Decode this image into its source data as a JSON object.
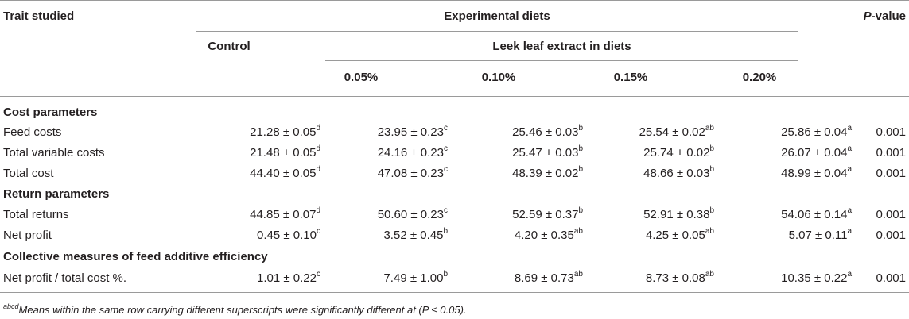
{
  "header": {
    "trait": "Trait studied",
    "experimental": "Experimental diets",
    "pvalue_p": "P",
    "pvalue_rest": "-value",
    "control": "Control",
    "leek": "Leek leaf extract in diets",
    "doses": [
      "0.05%",
      "0.10%",
      "0.15%",
      "0.20%"
    ]
  },
  "sections": [
    {
      "title": "Cost parameters",
      "rows": [
        {
          "label": "Feed costs",
          "cells": [
            {
              "v": "21.28 ± 0.05",
              "s": "d"
            },
            {
              "v": "23.95 ± 0.23",
              "s": "c"
            },
            {
              "v": "25.46 ± 0.03",
              "s": "b"
            },
            {
              "v": "25.54 ± 0.02",
              "s": "ab"
            },
            {
              "v": "25.86 ± 0.04",
              "s": "a"
            }
          ],
          "p": "0.001"
        },
        {
          "label": "Total variable costs",
          "cells": [
            {
              "v": "21.48 ± 0.05",
              "s": "d"
            },
            {
              "v": "24.16 ± 0.23",
              "s": "c"
            },
            {
              "v": "25.47 ± 0.03",
              "s": "b"
            },
            {
              "v": "25.74 ± 0.02",
              "s": "b"
            },
            {
              "v": "26.07 ± 0.04",
              "s": "a"
            }
          ],
          "p": "0.001"
        },
        {
          "label": "Total cost",
          "cells": [
            {
              "v": "44.40 ± 0.05",
              "s": "d"
            },
            {
              "v": "47.08 ± 0.23",
              "s": "c"
            },
            {
              "v": "48.39 ± 0.02",
              "s": "b"
            },
            {
              "v": "48.66 ± 0.03",
              "s": "b"
            },
            {
              "v": "48.99 ± 0.04",
              "s": "a"
            }
          ],
          "p": "0.001"
        }
      ]
    },
    {
      "title": "Return parameters",
      "rows": [
        {
          "label": "Total returns",
          "cells": [
            {
              "v": "44.85 ± 0.07",
              "s": "d"
            },
            {
              "v": "50.60 ± 0.23",
              "s": "c"
            },
            {
              "v": "52.59 ± 0.37",
              "s": "b"
            },
            {
              "v": "52.91 ± 0.38",
              "s": "b"
            },
            {
              "v": "54.06 ± 0.14",
              "s": "a"
            }
          ],
          "p": "0.001"
        },
        {
          "label": "Net profit",
          "cells": [
            {
              "v": "0.45 ± 0.10",
              "s": "c"
            },
            {
              "v": "3.52 ± 0.45",
              "s": "b"
            },
            {
              "v": "4.20 ± 0.35",
              "s": "ab"
            },
            {
              "v": "4.25 ± 0.05",
              "s": "ab"
            },
            {
              "v": "5.07 ± 0.11",
              "s": "a"
            }
          ],
          "p": "0.001"
        }
      ]
    },
    {
      "title": "Collective measures of feed additive efficiency",
      "rows": [
        {
          "label": "Net profit / total cost %.",
          "cells": [
            {
              "v": "1.01 ± 0.22",
              "s": "c"
            },
            {
              "v": "7.49 ± 1.00",
              "s": "b"
            },
            {
              "v": "8.69 ± 0.73",
              "s": "ab"
            },
            {
              "v": "8.73 ± 0.08",
              "s": "ab"
            },
            {
              "v": "10.35 ± 0.22",
              "s": "a"
            }
          ],
          "p": "0.001"
        }
      ]
    }
  ],
  "footnote": {
    "sup": "abcd",
    "text": "Means within the same row carrying different superscripts were significantly different at (P ≤ 0.05)."
  }
}
